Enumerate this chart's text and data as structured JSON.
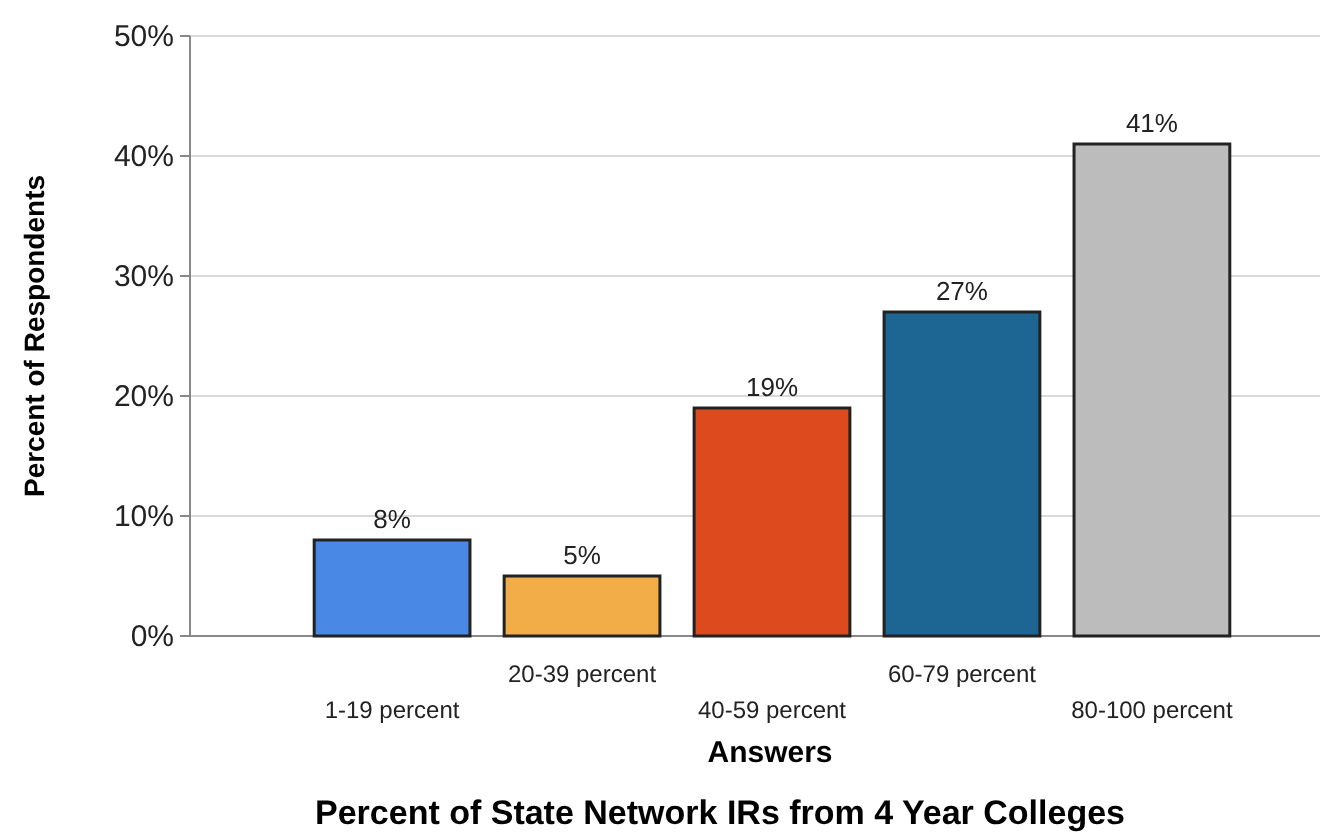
{
  "chart_data": {
    "type": "bar",
    "title": "Percent of State Network IRs from 4 Year Colleges",
    "xlabel": "Answers",
    "ylabel": "Percent of Respondents",
    "categories": [
      "1-19 percent",
      "20-39 percent",
      "40-59 percent",
      "60-79 percent",
      "80-100 percent"
    ],
    "values": [
      8,
      5,
      19,
      27,
      41
    ],
    "colors": [
      "#4a88e6",
      "#f2ac48",
      "#dc4a1e",
      "#1d6592",
      "#bcbcbc"
    ],
    "ylim": [
      0,
      50
    ],
    "yticks": [
      {
        "value": 0,
        "label": "0%"
      },
      {
        "value": 10,
        "label": "10%"
      },
      {
        "value": 20,
        "label": "20%"
      },
      {
        "value": 30,
        "label": "30%"
      },
      {
        "value": 40,
        "label": "40%"
      },
      {
        "value": 50,
        "label": "50%"
      }
    ],
    "value_labels": [
      "8%",
      "5%",
      "19%",
      "27%",
      "41%"
    ],
    "grid": "y"
  }
}
